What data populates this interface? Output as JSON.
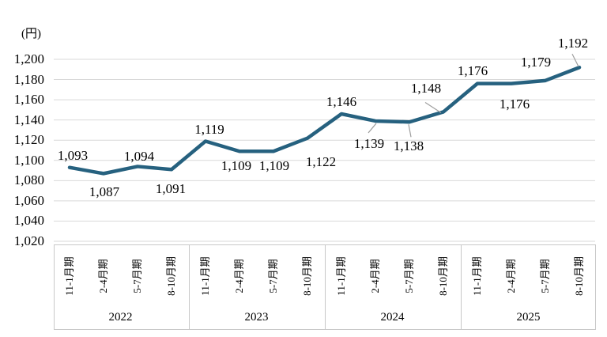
{
  "chart_data": {
    "type": "line",
    "unit_label": "(円)",
    "ylim": [
      1020,
      1200
    ],
    "ytick_step": 20,
    "grid": true,
    "legend": "none",
    "colors": {
      "line": "#26617F",
      "grid": "#D9D9D9",
      "axis_box_border": "#C8C8C8",
      "leader_line": "#9E9E9E",
      "text": "#000000"
    },
    "x_axis": {
      "year_groups": [
        {
          "year": "2022",
          "quarters": [
            "11-1月期",
            "2-4月期",
            "5-7月期",
            "8-10月期"
          ]
        },
        {
          "year": "2023",
          "quarters": [
            "11-1月期",
            "2-4月期",
            "5-7月期",
            "8-10月期"
          ]
        },
        {
          "year": "2024",
          "quarters": [
            "11-1月期",
            "2-4月期",
            "5-7月期",
            "8-10月期"
          ]
        },
        {
          "year": "2025",
          "quarters": [
            "11-1月期",
            "2-4月期",
            "5-7月期",
            "8-10月期"
          ]
        }
      ]
    },
    "series": [
      {
        "name": "price-trend",
        "points": [
          {
            "year": "2022",
            "quarter": "11-1月期",
            "value": 1093,
            "label": "1,093",
            "label_pos": "above",
            "label_offset": [
              4,
              -15
            ]
          },
          {
            "year": "2022",
            "quarter": "2-4月期",
            "value": 1087,
            "label": "1,087",
            "label_pos": "below",
            "label_offset": [
              1,
              24
            ]
          },
          {
            "year": "2022",
            "quarter": "5-7月期",
            "value": 1094,
            "label": "1,094",
            "label_pos": "above",
            "label_offset": [
              2,
              -12
            ]
          },
          {
            "year": "2022",
            "quarter": "8-10月期",
            "value": 1091,
            "label": "1,091",
            "label_pos": "below",
            "label_offset": [
              -1,
              25
            ]
          },
          {
            "year": "2023",
            "quarter": "11-1月期",
            "value": 1119,
            "label": "1,119",
            "label_pos": "above",
            "label_offset": [
              5,
              -15
            ]
          },
          {
            "year": "2023",
            "quarter": "2-4月期",
            "value": 1109,
            "label": "1,109",
            "label_pos": "below",
            "label_offset": [
              -4,
              19
            ]
          },
          {
            "year": "2023",
            "quarter": "5-7月期",
            "value": 1109,
            "label": "1,109",
            "label_pos": "below",
            "label_offset": [
              1,
              19
            ]
          },
          {
            "year": "2023",
            "quarter": "8-10月期",
            "value": 1122,
            "label": "1,122",
            "label_pos": "below",
            "label_offset": [
              17,
              30
            ]
          },
          {
            "year": "2024",
            "quarter": "11-1月期",
            "value": 1146,
            "label": "1,146",
            "label_pos": "above",
            "label_offset": [
              0,
              -15
            ]
          },
          {
            "year": "2024",
            "quarter": "2-4月期",
            "value": 1139,
            "label": "1,139",
            "label_pos": "below",
            "label_offset": [
              -8,
              29
            ],
            "leader": [
              [
                1,
                3
              ],
              [
                -9,
                15
              ]
            ]
          },
          {
            "year": "2024",
            "quarter": "5-7月期",
            "value": 1138,
            "label": "1,138",
            "label_pos": "below",
            "label_offset": [
              -1,
              31
            ],
            "leader": [
              [
                -1,
                3
              ],
              [
                2,
                19
              ]
            ]
          },
          {
            "year": "2024",
            "quarter": "8-10月期",
            "value": 1148,
            "label": "1,148",
            "label_pos": "above",
            "label_offset": [
              -22,
              -29
            ],
            "leader": [
              [
                -3,
                1
              ],
              [
                -23,
                -12
              ]
            ]
          },
          {
            "year": "2025",
            "quarter": "11-1月期",
            "value": 1176,
            "label": "1,176",
            "label_pos": "above",
            "label_offset": [
              -6,
              -16
            ]
          },
          {
            "year": "2025",
            "quarter": "2-4月期",
            "value": 1176,
            "label": "1,176",
            "label_pos": "below",
            "label_offset": [
              4,
              26
            ]
          },
          {
            "year": "2025",
            "quarter": "5-7月期",
            "value": 1179,
            "label": "1,179",
            "label_pos": "above",
            "label_offset": [
              -12,
              -23
            ]
          },
          {
            "year": "2025",
            "quarter": "8-10月期",
            "value": 1192,
            "label": "1,192",
            "label_pos": "above",
            "label_offset": [
              -8,
              -30
            ],
            "leader": [
              [
                -1,
                -1
              ],
              [
                -9,
                -17
              ]
            ]
          }
        ]
      }
    ]
  }
}
